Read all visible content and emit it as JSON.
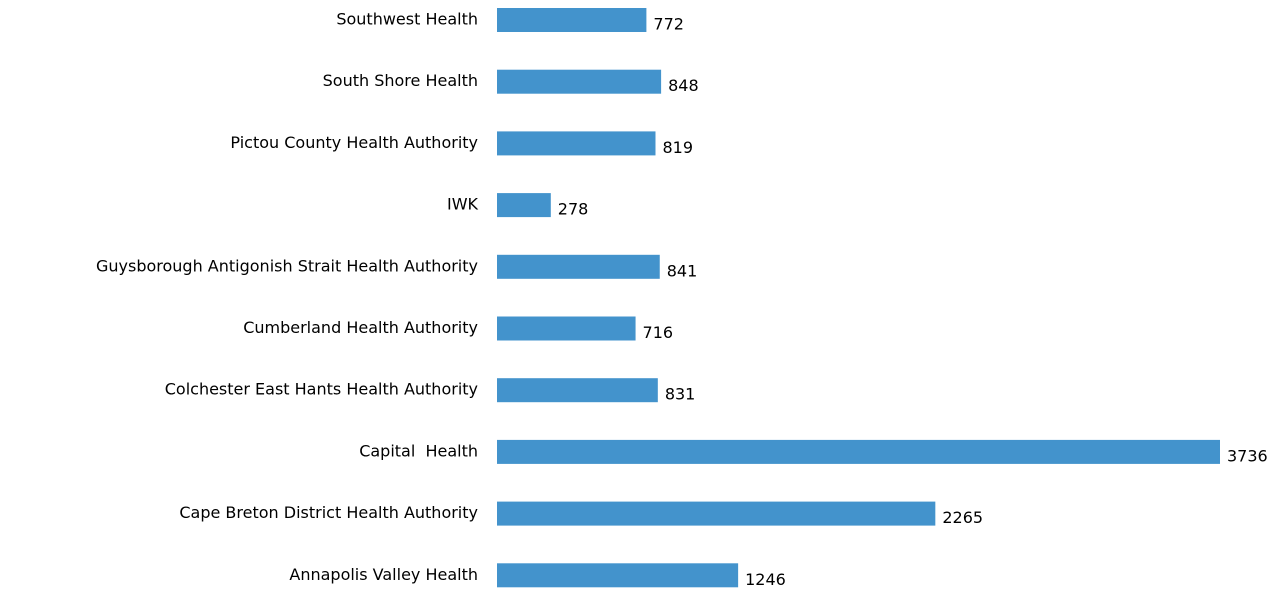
{
  "chart_data": {
    "type": "bar",
    "orientation": "horizontal",
    "categories": [
      "Southwest Health",
      "South Shore Health",
      "Pictou County Health Authority",
      "IWK",
      "Guysborough Antigonish Strait Health Authority",
      "Cumberland Health Authority",
      "Colchester East Hants Health Authority",
      "Capital  Health",
      "Cape Breton District Health Authority",
      "Annapolis Valley Health"
    ],
    "values": [
      772,
      848,
      819,
      278,
      841,
      716,
      831,
      3736,
      2265,
      1246
    ],
    "color": "#4393cc"
  }
}
